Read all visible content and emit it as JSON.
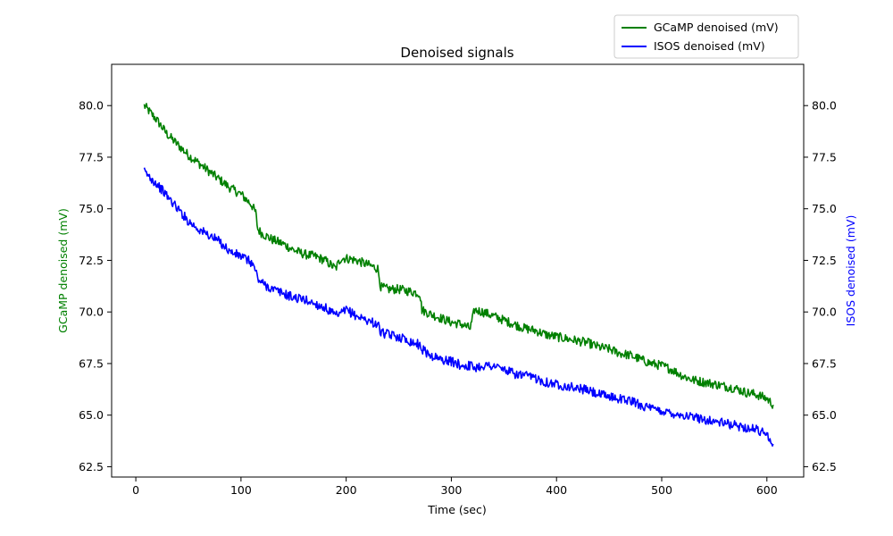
{
  "chart_data": {
    "type": "line",
    "title": "Denoised signals",
    "xlabel": "Time (sec)",
    "ylabel_left": "GCaMP denoised (mV)",
    "ylabel_right": "ISOS denoised (mV)",
    "xlim": [
      -23,
      635
    ],
    "ylim_left": [
      62.0,
      82.0
    ],
    "ylim_right": [
      62.0,
      82.0
    ],
    "x_ticks": [
      0,
      100,
      200,
      300,
      400,
      500,
      600
    ],
    "y_ticks": [
      62.5,
      65.0,
      67.5,
      70.0,
      72.5,
      75.0,
      77.5,
      80.0
    ],
    "y_tick_labels": [
      "62.5",
      "65.0",
      "67.5",
      "70.0",
      "72.5",
      "75.0",
      "77.5",
      "80.0"
    ],
    "grid": false,
    "legend_position": "top-right, above plot",
    "series": [
      {
        "name": "GCaMP denoised (mV)",
        "color": "#008000",
        "axis": "left",
        "x": [
          8,
          20,
          30,
          40,
          50,
          60,
          70,
          80,
          90,
          100,
          110,
          114,
          116,
          120,
          130,
          140,
          150,
          160,
          170,
          180,
          190,
          195,
          200,
          210,
          220,
          230,
          233,
          240,
          250,
          260,
          270,
          272,
          280,
          290,
          300,
          310,
          318,
          322,
          330,
          340,
          350,
          360,
          370,
          380,
          390,
          400,
          410,
          420,
          430,
          440,
          450,
          460,
          470,
          480,
          490,
          500,
          510,
          520,
          530,
          540,
          550,
          560,
          570,
          580,
          590,
          600,
          606
        ],
        "y": [
          80.0,
          79.3,
          78.6,
          78.1,
          77.6,
          77.2,
          76.8,
          76.4,
          76.0,
          75.7,
          75.2,
          74.8,
          74.0,
          73.8,
          73.5,
          73.3,
          73.0,
          72.8,
          72.7,
          72.5,
          72.1,
          72.6,
          72.6,
          72.5,
          72.3,
          72.1,
          71.2,
          71.1,
          71.1,
          71.0,
          70.9,
          70.1,
          69.9,
          69.7,
          69.5,
          69.4,
          69.2,
          70.1,
          70.0,
          69.8,
          69.6,
          69.4,
          69.2,
          69.1,
          68.9,
          68.8,
          68.7,
          68.6,
          68.5,
          68.3,
          68.2,
          68.0,
          67.9,
          67.7,
          67.5,
          67.4,
          67.2,
          66.9,
          66.7,
          66.6,
          66.5,
          66.4,
          66.3,
          66.1,
          66.0,
          65.8,
          65.5
        ]
      },
      {
        "name": "ISOS denoised (mV)",
        "color": "#0000ff",
        "axis": "right",
        "x": [
          8,
          20,
          30,
          40,
          50,
          60,
          70,
          80,
          90,
          100,
          110,
          114,
          116,
          120,
          130,
          140,
          150,
          160,
          170,
          180,
          190,
          195,
          200,
          210,
          220,
          230,
          233,
          240,
          250,
          260,
          270,
          272,
          280,
          290,
          300,
          310,
          318,
          322,
          330,
          340,
          350,
          360,
          370,
          380,
          390,
          400,
          410,
          420,
          430,
          440,
          450,
          460,
          470,
          480,
          490,
          500,
          510,
          520,
          530,
          540,
          550,
          560,
          570,
          580,
          590,
          600,
          606
        ],
        "y": [
          76.8,
          76.2,
          75.6,
          75.0,
          74.4,
          74.0,
          73.7,
          73.4,
          72.9,
          72.7,
          72.4,
          72.0,
          71.6,
          71.4,
          71.1,
          70.9,
          70.7,
          70.6,
          70.4,
          70.2,
          69.8,
          69.9,
          70.1,
          69.8,
          69.6,
          69.4,
          69.0,
          68.9,
          68.8,
          68.6,
          68.4,
          68.2,
          67.9,
          67.7,
          67.6,
          67.4,
          67.4,
          67.3,
          67.4,
          67.4,
          67.2,
          67.0,
          66.9,
          66.8,
          66.6,
          66.5,
          66.4,
          66.3,
          66.2,
          66.0,
          65.9,
          65.8,
          65.7,
          65.5,
          65.3,
          65.2,
          65.1,
          65.0,
          64.9,
          64.8,
          64.7,
          64.6,
          64.5,
          64.4,
          64.3,
          64.1,
          63.6
        ]
      }
    ]
  }
}
